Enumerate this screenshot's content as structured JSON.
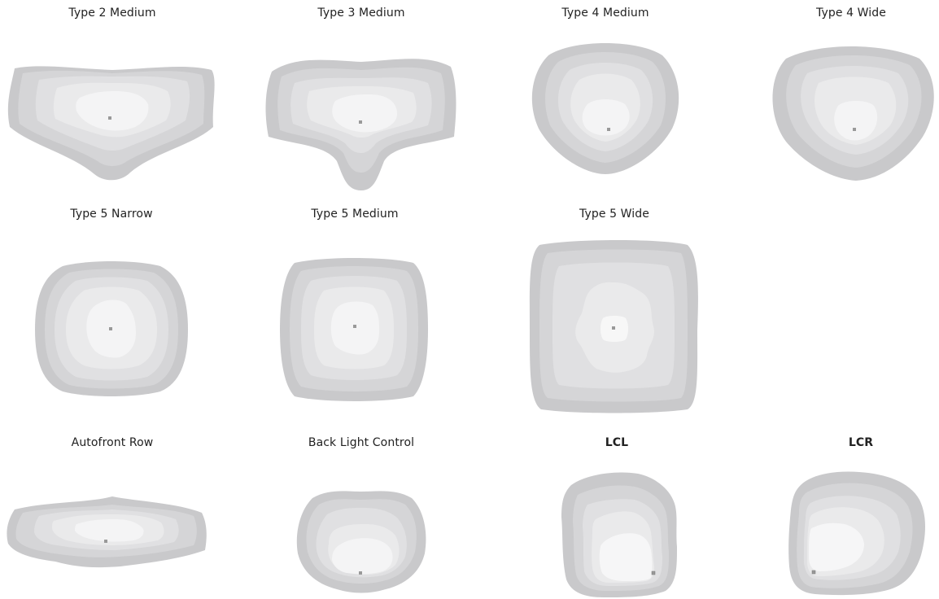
{
  "diagrams": [
    {
      "id": "t2m",
      "label": "Type 2 Medium",
      "bold": false
    },
    {
      "id": "t3m",
      "label": "Type 3 Medium",
      "bold": false
    },
    {
      "id": "t4m",
      "label": "Type 4 Medium",
      "bold": false
    },
    {
      "id": "t4w",
      "label": "Type 4 Wide",
      "bold": false
    },
    {
      "id": "t5n",
      "label": "Type 5 Narrow",
      "bold": false
    },
    {
      "id": "t5m",
      "label": "Type 5 Medium",
      "bold": false
    },
    {
      "id": "t5w",
      "label": "Type 5 Wide",
      "bold": false
    },
    {
      "id": "afr",
      "label": "Autofront Row",
      "bold": false
    },
    {
      "id": "blc",
      "label": "Back Light Control",
      "bold": false
    },
    {
      "id": "lcl",
      "label": "LCL",
      "bold": true
    },
    {
      "id": "lcr",
      "label": "LCR",
      "bold": true
    }
  ],
  "colors": [
    "#c9c9cb",
    "#d5d5d7",
    "#e0e0e2",
    "#eaeaeb",
    "#f2f2f3",
    "#f8f8f8"
  ],
  "marker_color": "#999999"
}
